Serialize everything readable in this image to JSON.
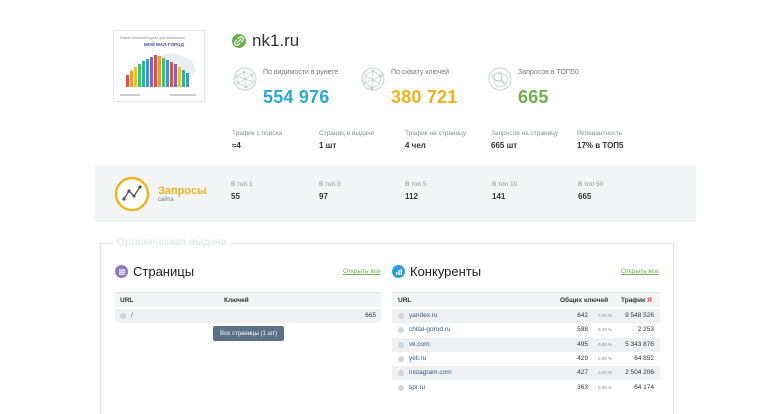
{
  "site": {
    "name": "nk1.ru"
  },
  "thumbnail": {
    "headline": "Новый типичный портал для мобильного",
    "brand": "МОЙ МАЛ-ГОРОД"
  },
  "metrics": [
    {
      "label": "По видимости в рунете",
      "value": "554 976",
      "color": "#2aa9c9",
      "icon": "network-globe-icon"
    },
    {
      "label": "По охвату ключей",
      "value": "380 721",
      "color": "#f0b11a",
      "icon": "network-globe-icon"
    },
    {
      "label": "Запросов в ТОП50",
      "value": "665",
      "color": "#6ab04c",
      "icon": "search-globe-icon"
    }
  ],
  "stats": [
    {
      "label": "Трафик с поиска",
      "value": "≈4"
    },
    {
      "label": "Страниц в выдаче",
      "value": "1 шт"
    },
    {
      "label": "Трафик на страницу",
      "value": "4 чел"
    },
    {
      "label": "Запросов на страницу",
      "value": "665 шт"
    },
    {
      "label": "Релевантность",
      "value": "17% в ТОП5"
    }
  ],
  "queries": {
    "title": "Запросы",
    "subtitle": "сайта",
    "tops": [
      {
        "label": "В топ 1",
        "value": "55"
      },
      {
        "label": "В топ 3",
        "value": "97"
      },
      {
        "label": "В топ 5",
        "value": "112"
      },
      {
        "label": "В топ 10",
        "value": "141"
      },
      {
        "label": "В топ 50",
        "value": "665"
      }
    ]
  },
  "organic": {
    "title": "Органическая выдача"
  },
  "pages": {
    "title": "Страницы",
    "show_all": "Открыть все",
    "columns": {
      "url": "URL",
      "keys": "Ключей"
    },
    "rows": [
      {
        "url": "/",
        "keys": "665"
      }
    ],
    "button": "Все страницы (1 шт)"
  },
  "competitors": {
    "title": "Конкуренты",
    "show_all": "Открыть все",
    "columns": {
      "url": "URL",
      "keys": "Общих ключей",
      "traffic": "Трафик",
      "traffic_badge": "Я"
    },
    "rows": [
      {
        "url": "yandex.ru",
        "keys": "642",
        "pct": "0.00 %",
        "traffic": "9 548 526"
      },
      {
        "url": "chital-gorod.ru",
        "keys": "598",
        "pct": "0.44 %",
        "traffic": "2 253"
      },
      {
        "url": "vk.com",
        "keys": "495",
        "pct": "0.00 %",
        "traffic": "5 343 876"
      },
      {
        "url": "yell.ru",
        "keys": "429",
        "pct": "0.00 %",
        "traffic": "64 852"
      },
      {
        "url": "instagram.com",
        "keys": "427",
        "pct": "0.00 %",
        "traffic": "2 504 206"
      },
      {
        "url": "spr.ru",
        "keys": "363",
        "pct": "0.00 %",
        "traffic": "64 174"
      }
    ]
  }
}
